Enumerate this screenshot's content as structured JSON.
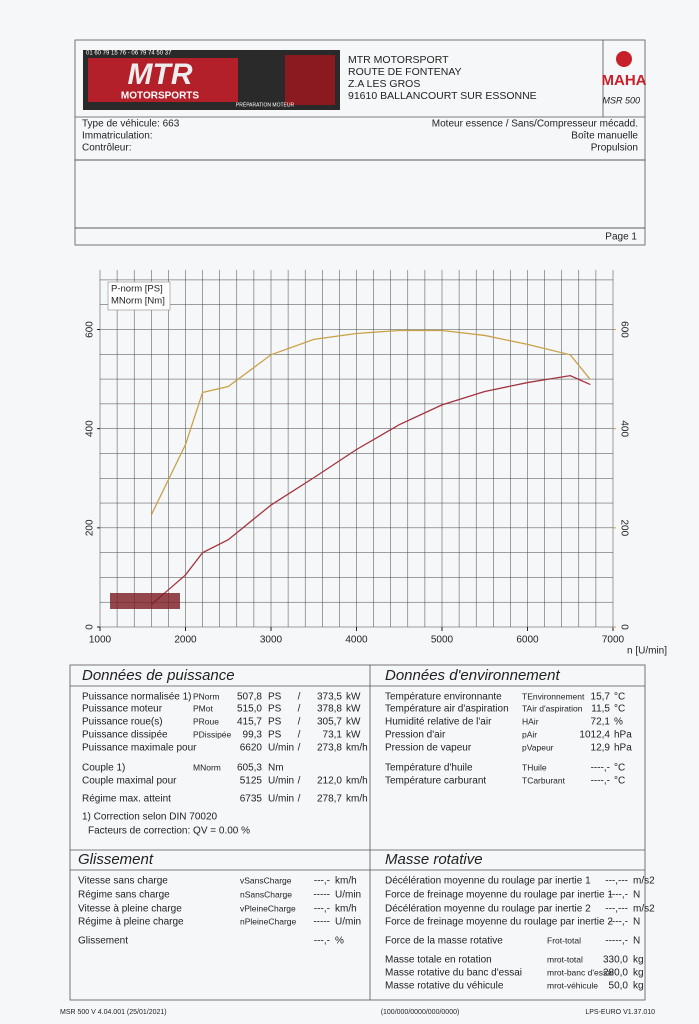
{
  "header": {
    "logo": {
      "phone": "01 60 79 15 76 - 06 79 74 50 37",
      "brand": "MTR",
      "sub": "MOTORSPORTS",
      "tagline": "PRÉPARATION MOTEUR"
    },
    "address": [
      "MTR MOTORSPORT",
      "ROUTE DE FONTENAY",
      "Z.A LES GROS",
      "91610 BALLANCOURT SUR ESSONNE"
    ],
    "brand": "MAHA",
    "model": "MSR 500"
  },
  "vehicle": {
    "left": [
      "Type de véhicule: 663",
      "Immatriculation:",
      "Contrôleur:"
    ],
    "right": [
      "Moteur essence / Sans/Compresseur mécadd.",
      "Boîte manuelle",
      "Propulsion"
    ]
  },
  "page": "Page 1",
  "chart_data": {
    "type": "line",
    "x_label": "n [U/min]",
    "x": [
      1600,
      1800,
      2000,
      2200,
      2500,
      3000,
      3500,
      4000,
      4500,
      5000,
      5500,
      6000,
      6500,
      6735
    ],
    "series": [
      {
        "name": "P-norm [PS]",
        "color": "#a3333d",
        "values": [
          45,
          75,
          105,
          150,
          176,
          246,
          301,
          358,
          408,
          448,
          475,
          493,
          507,
          489
        ]
      },
      {
        "name": "MNorm [Nm]",
        "color": "#c9a248",
        "axis": "y2",
        "values": [
          226,
          297,
          368,
          473,
          485,
          549,
          580,
          592,
          598,
          598,
          588,
          570,
          549,
          499
        ]
      }
    ],
    "xlim": [
      1000,
      7000
    ],
    "xticks": [
      1000,
      2000,
      3000,
      4000,
      5000,
      6000,
      7000
    ],
    "ylim": [
      0,
      720
    ],
    "yticks": [
      0,
      200,
      400,
      600
    ],
    "y2lim": [
      0,
      720
    ],
    "y2ticks": [
      0,
      200,
      400,
      600
    ],
    "grid": true,
    "legend": "upper left"
  },
  "power": {
    "title": "Données de puissance",
    "rows": [
      {
        "label": "Puissance normalisée 1)",
        "symbol": "PNorm",
        "value": "507,8",
        "unit": "PS",
        "sep": "/",
        "value2": "373,5",
        "unit2": "kW",
        "color": "#a3333d"
      },
      {
        "label": "Puissance moteur",
        "symbol": "PMot",
        "value": "515,0",
        "unit": "PS",
        "sep": "/",
        "value2": "378,8",
        "unit2": "kW",
        "color": "#a3333d"
      },
      {
        "label": "Puissance roue(s)",
        "symbol": "PRoue",
        "value": "415,7",
        "unit": "PS",
        "sep": "/",
        "value2": "305,7",
        "unit2": "kW",
        "color": "#2c4ea0"
      },
      {
        "label": "Puissance dissipée",
        "symbol": "PDissipée",
        "value": "99,3",
        "unit": "PS",
        "sep": "/",
        "value2": "73,1",
        "unit2": "kW",
        "color": "#3f8a3a"
      },
      {
        "label": "Puissance maximale pour",
        "value": "6620",
        "unit": "U/min",
        "sep": "/",
        "value2": "273,8",
        "unit2": "km/h",
        "color": "#222222"
      },
      {
        "label": "Couple 1)",
        "symbol": "MNorm",
        "value": "605,3",
        "unit": "Nm",
        "color": "#c9852c"
      },
      {
        "label": "Couple maximal pour",
        "value": "5125",
        "unit": "U/min",
        "sep": "/",
        "value2": "212,0",
        "unit2": "km/h",
        "color": "#222222"
      },
      {
        "label": "Régime max. atteint",
        "value": "6735",
        "unit": "U/min",
        "sep": "/",
        "value2": "278,7",
        "unit2": "km/h",
        "color": "#222222"
      }
    ],
    "notes": [
      "1) Correction selon DIN 70020",
      "Facteurs de correction: QV =  0.00 %"
    ]
  },
  "environment": {
    "title": "Données d'environnement",
    "rows": [
      {
        "label": "Température environnante",
        "symbol": "TEnvironnement",
        "value": "15,7",
        "unit": "°C"
      },
      {
        "label": "Température air d'aspiration",
        "symbol": "TAir d'aspiration",
        "value": "11,5",
        "unit": "°C"
      },
      {
        "label": "Humidité relative de l'air",
        "symbol": "HAir",
        "value": "72,1",
        "unit": "%"
      },
      {
        "label": "Pression d'air",
        "symbol": "pAir",
        "value": "1012,4",
        "unit": "hPa"
      },
      {
        "label": "Pression de vapeur",
        "symbol": "pVapeur",
        "value": "12,9",
        "unit": "hPa"
      },
      {
        "label": "Température d'huile",
        "symbol": "THuile",
        "value": "----,-",
        "unit": "°C"
      },
      {
        "label": "Température carburant",
        "symbol": "TCarburant",
        "value": "----,-",
        "unit": "°C"
      }
    ]
  },
  "slip": {
    "title": "Glissement",
    "rows": [
      {
        "label": "Vitesse sans charge",
        "symbol": "vSansCharge",
        "value": "---,-",
        "unit": "km/h"
      },
      {
        "label": "Régime sans charge",
        "symbol": "nSansCharge",
        "value": "-----",
        "unit": "U/min"
      },
      {
        "label": "Vitesse à pleine charge",
        "symbol": "vPleineCharge",
        "value": "---,-",
        "unit": "km/h"
      },
      {
        "label": "Régime à pleine charge",
        "symbol": "nPleineCharge",
        "value": "-----",
        "unit": "U/min"
      },
      {
        "label": "Glissement",
        "value": "---,-",
        "unit": "%"
      }
    ]
  },
  "inertia": {
    "title": "Masse rotative",
    "rows": [
      {
        "label": "Décélération moyenne du roulage par inertie 1",
        "value": "---,---",
        "unit": "m/s2"
      },
      {
        "label": "Force de freinage moyenne du roulage par inertie 1",
        "value": "----,-",
        "unit": "N"
      },
      {
        "label": "Décélération moyenne du roulage par inertie 2",
        "value": "---,---",
        "unit": "m/s2"
      },
      {
        "label": "Force de freinage moyenne du roulage par inertie 2",
        "value": "----,-",
        "unit": "N"
      },
      {
        "label": "Force de la masse rotative",
        "symbol": "Frot-total",
        "value": "-----,-",
        "unit": "N"
      },
      {
        "label": "Masse totale en rotation",
        "symbol": "mrot-total",
        "value": "330,0",
        "unit": "kg"
      },
      {
        "label": "Masse rotative du banc d'essai",
        "symbol": "mrot-banc d'essai",
        "value": "280,0",
        "unit": "kg"
      },
      {
        "label": "Masse rotative du véhicule",
        "symbol": "mrot-véhicule",
        "value": "50,0",
        "unit": "kg"
      }
    ]
  },
  "footer": {
    "left": "MSR 500 V 4.04.001 (25/01/2021)",
    "center": "(100/000/0000/000/0000)",
    "right": "LPS-EURO V1.37.010"
  }
}
